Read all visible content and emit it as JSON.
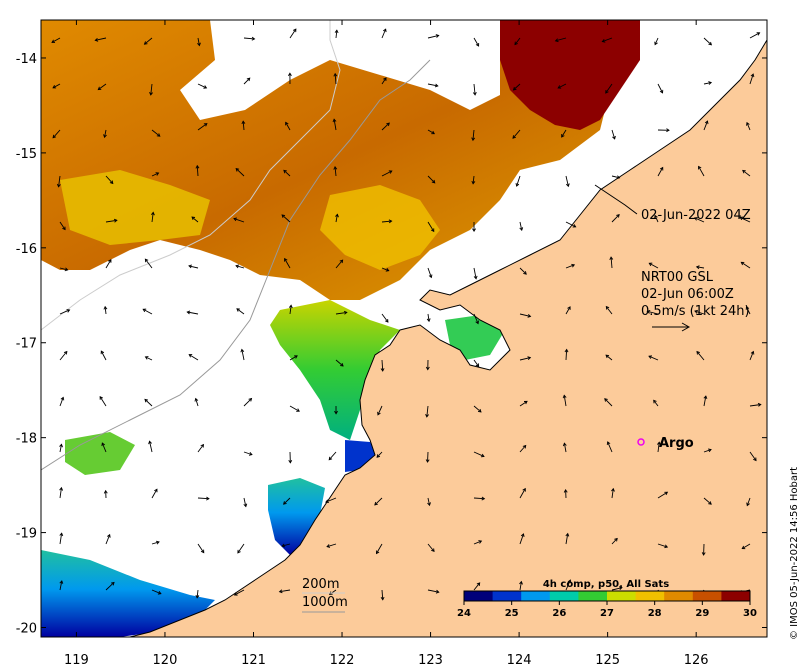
{
  "map": {
    "lon_ticks": [
      "119",
      "120",
      "121",
      "122",
      "123",
      "124",
      "125",
      "126"
    ],
    "lat_ticks": [
      "-14",
      "-15",
      "-16",
      "-17",
      "-18",
      "-19",
      "-20"
    ],
    "lon_range": [
      118.6,
      126.8
    ],
    "lat_range": [
      -20.1,
      -13.6
    ]
  },
  "annotations": {
    "satellite_time": "02-Jun-2022 04Z",
    "current_model": "NRT00 GSL",
    "current_time": "02-Jun 06:00Z",
    "current_scale": "0.5m/s (1kt 24h)",
    "argo_label": "Argo",
    "isobath_200": "200m",
    "isobath_1000": "1000m",
    "credit": "© IMOS 05-Jun-2022 14:56 Hobart"
  },
  "colorbar": {
    "title": "4h comp, p50, All Sats",
    "ticks": [
      "24",
      "25",
      "26",
      "27",
      "28",
      "29",
      "30"
    ],
    "range": [
      24,
      30
    ],
    "colors": [
      "#00007a",
      "#0033cc",
      "#0099ee",
      "#00ccaa",
      "#33cc33",
      "#ccdd00",
      "#f0c000",
      "#e08a00",
      "#c85000",
      "#8c0000"
    ]
  },
  "colors": {
    "land": "#fccb9a",
    "coast": "#000000",
    "argo": "#ee00ee",
    "isobath": "#aaaaaa"
  }
}
